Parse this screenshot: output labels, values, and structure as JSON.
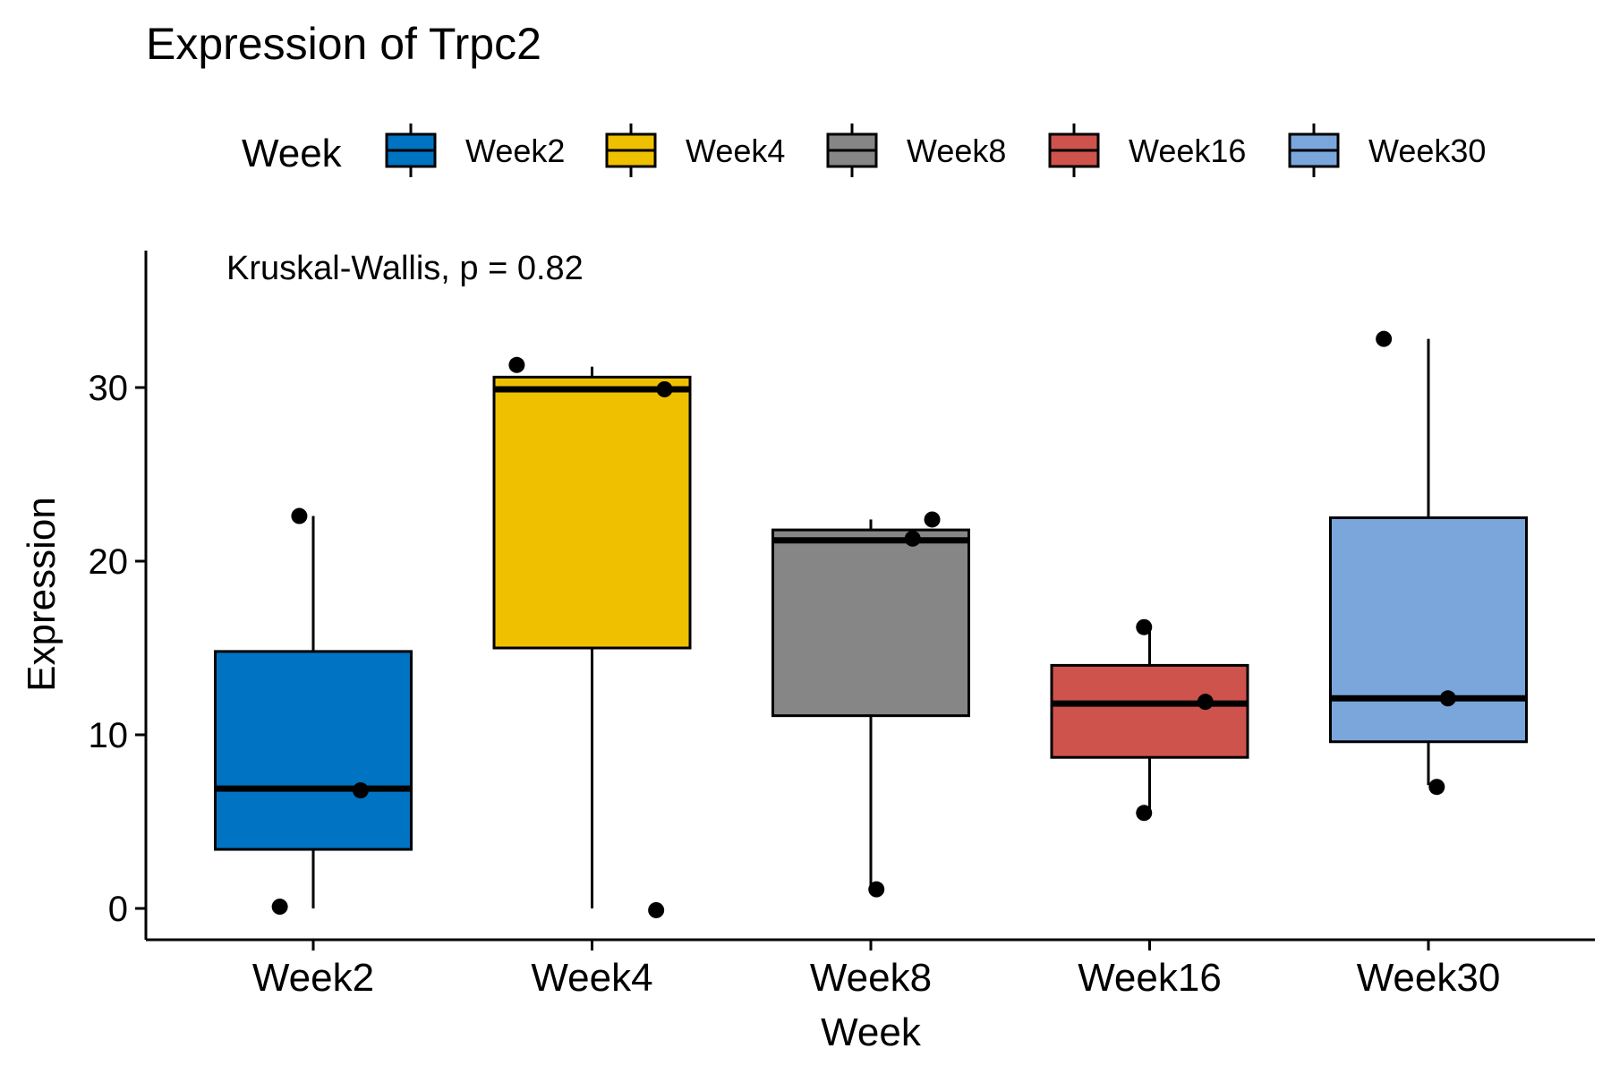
{
  "chart_data": {
    "type": "boxplot",
    "title": "Expression of Trpc2",
    "xlabel": "Week",
    "ylabel": "Expression",
    "annotation": "Kruskal-Wallis, p = 0.82",
    "legend": {
      "title": "Week",
      "placement": "top"
    },
    "ylim": [
      -1.8,
      37.5
    ],
    "yticks": [
      0,
      10,
      20,
      30
    ],
    "grid": false,
    "categories": [
      "Week2",
      "Week4",
      "Week8",
      "Week16",
      "Week30"
    ],
    "series": [
      {
        "name": "Week2",
        "color": "#0073C2",
        "whisker_low": 0.0,
        "q1": 3.4,
        "median": 6.9,
        "q3": 14.8,
        "whisker_high": 22.6,
        "points": [
          [
            -0.12,
            0.1
          ],
          [
            0.17,
            6.8
          ],
          [
            -0.05,
            22.6
          ]
        ]
      },
      {
        "name": "Week4",
        "color": "#EFC000",
        "whisker_low": 0.0,
        "q1": 15.0,
        "median": 29.9,
        "q3": 30.6,
        "whisker_high": 31.2,
        "points": [
          [
            -0.27,
            31.3
          ],
          [
            0.26,
            29.9
          ],
          [
            0.23,
            -0.1
          ]
        ]
      },
      {
        "name": "Week8",
        "color": "#868686",
        "whisker_low": 1.1,
        "q1": 11.1,
        "median": 21.2,
        "q3": 21.8,
        "whisker_high": 22.4,
        "points": [
          [
            0.15,
            21.3
          ],
          [
            0.02,
            1.1
          ],
          [
            0.22,
            22.4
          ]
        ]
      },
      {
        "name": "Week16",
        "color": "#CD534C",
        "whisker_low": 5.5,
        "q1": 8.7,
        "median": 11.8,
        "q3": 14.0,
        "whisker_high": 16.2,
        "points": [
          [
            -0.02,
            16.2
          ],
          [
            0.2,
            11.9
          ],
          [
            -0.02,
            5.5
          ]
        ]
      },
      {
        "name": "Week30",
        "color": "#7AA6DC",
        "whisker_low": 7.1,
        "q1": 9.6,
        "median": 12.1,
        "q3": 22.5,
        "whisker_high": 32.8,
        "points": [
          [
            -0.16,
            32.8
          ],
          [
            0.07,
            12.1
          ],
          [
            0.03,
            7.0
          ]
        ]
      }
    ]
  }
}
